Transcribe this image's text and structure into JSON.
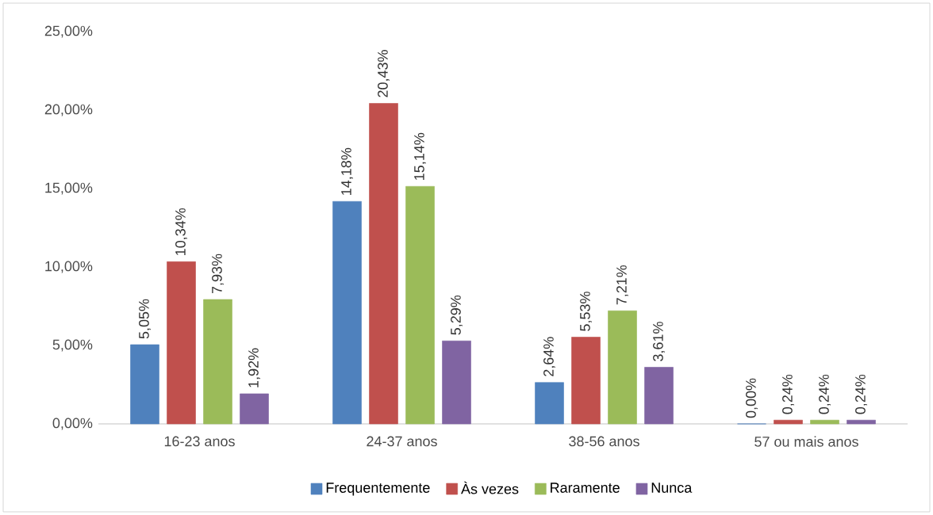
{
  "chart_data": {
    "type": "bar",
    "categories": [
      "16-23 anos",
      "24-37 anos",
      "38-56 anos",
      "57 ou mais anos"
    ],
    "series": [
      {
        "name": "Frequentemente",
        "color": "#4f81bd",
        "values": [
          5.05,
          14.18,
          2.64,
          0.0
        ],
        "value_labels": [
          "5,05%",
          "14,18%",
          "2,64%",
          "0,00%"
        ]
      },
      {
        "name": "Às vezes",
        "color": "#c0504d",
        "values": [
          10.34,
          20.43,
          5.53,
          0.24
        ],
        "value_labels": [
          "10,34%",
          "20,43%",
          "5,53%",
          "0,24%"
        ]
      },
      {
        "name": "Raramente",
        "color": "#9bbb59",
        "values": [
          7.93,
          15.14,
          7.21,
          0.24
        ],
        "value_labels": [
          "7,93%",
          "15,14%",
          "7,21%",
          "0,24%"
        ]
      },
      {
        "name": "Nunca",
        "color": "#8064a2",
        "values": [
          1.92,
          5.29,
          3.61,
          0.24
        ],
        "value_labels": [
          "1,92%",
          "5,29%",
          "3,61%",
          "0,24%"
        ]
      }
    ],
    "ylim": [
      0,
      25
    ],
    "yticks": [
      {
        "value": 0,
        "label": "0,00%"
      },
      {
        "value": 5,
        "label": "5,00%"
      },
      {
        "value": 10,
        "label": "10,00%"
      },
      {
        "value": 15,
        "label": "15,00%"
      },
      {
        "value": 20,
        "label": "20,00%"
      },
      {
        "value": 25,
        "label": "25,00%"
      }
    ],
    "grid": false,
    "legend": "bottom"
  }
}
